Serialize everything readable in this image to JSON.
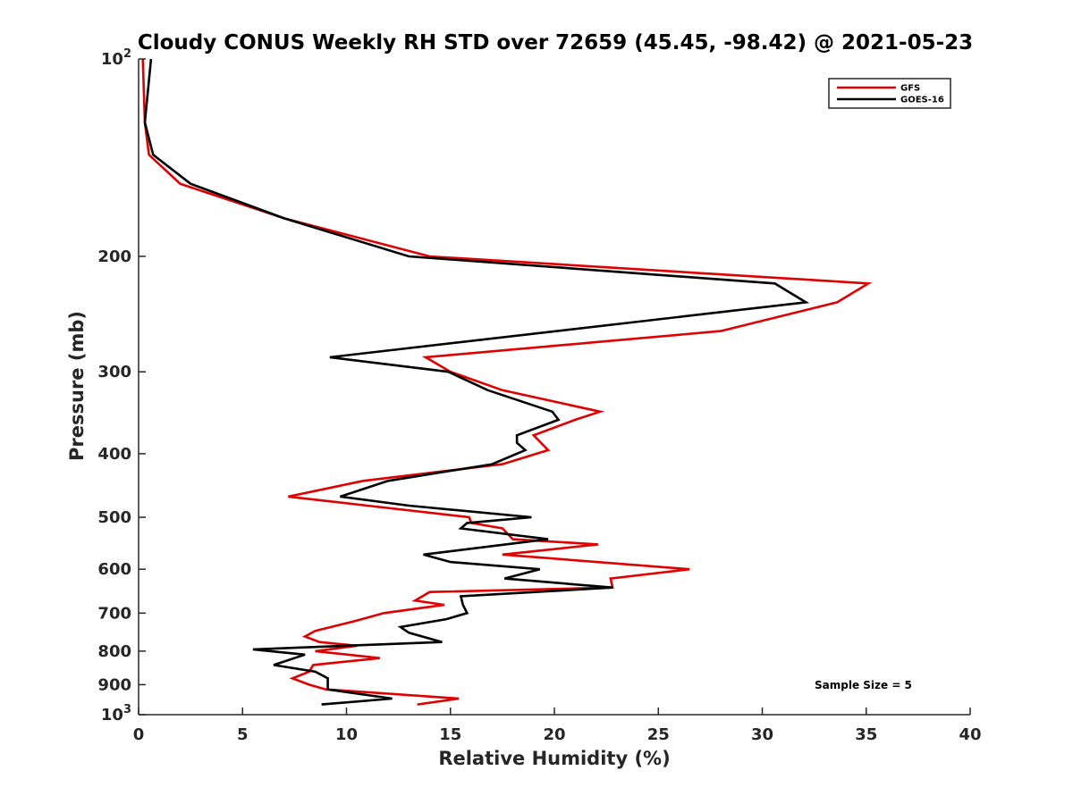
{
  "chart_data": {
    "type": "line",
    "orientation": "vertical-profile",
    "title": "Cloudy CONUS Weekly RH STD over 72659 (45.45, -98.42) @ 2021-05-23",
    "xlabel": "Relative Humidity (%)",
    "ylabel": "Pressure (mb)",
    "xlim": [
      0,
      40
    ],
    "ylim": [
      100,
      1000
    ],
    "y_scale": "log",
    "y_reversed": true,
    "grid": false,
    "legend_position": "top-right",
    "x_ticks": [
      "0",
      "5",
      "10",
      "15",
      "20",
      "25",
      "30",
      "35",
      "40"
    ],
    "y_ticks": [
      {
        "value": 100,
        "base": "10",
        "exp": "2"
      },
      {
        "value": 200,
        "label": "200"
      },
      {
        "value": 300,
        "label": "300"
      },
      {
        "value": 400,
        "label": "400"
      },
      {
        "value": 500,
        "label": "500"
      },
      {
        "value": 600,
        "label": "600"
      },
      {
        "value": 700,
        "label": "700"
      },
      {
        "value": 800,
        "label": "800"
      },
      {
        "value": 900,
        "label": "900"
      },
      {
        "value": 1000,
        "base": "10",
        "exp": "3"
      }
    ],
    "annotation": "Sample Size = 5",
    "series": [
      {
        "name": "GFS",
        "color": "#e00000",
        "points": [
          [
            0.2,
            100
          ],
          [
            0.3,
            125
          ],
          [
            0.5,
            140
          ],
          [
            2.0,
            155
          ],
          [
            7.0,
            175
          ],
          [
            14.0,
            200
          ],
          [
            35.1,
            220
          ],
          [
            33.6,
            235
          ],
          [
            28.0,
            260
          ],
          [
            13.8,
            285
          ],
          [
            15.0,
            300
          ],
          [
            17.5,
            320
          ],
          [
            22.2,
            345
          ],
          [
            21.0,
            355
          ],
          [
            19.0,
            375
          ],
          [
            19.7,
            395
          ],
          [
            17.5,
            415
          ],
          [
            10.8,
            440
          ],
          [
            7.2,
            465
          ],
          [
            11.0,
            480
          ],
          [
            15.9,
            500
          ],
          [
            16.0,
            510
          ],
          [
            17.5,
            520
          ],
          [
            18.0,
            540
          ],
          [
            22.1,
            550
          ],
          [
            17.5,
            570
          ],
          [
            26.5,
            600
          ],
          [
            22.7,
            620
          ],
          [
            22.8,
            640
          ],
          [
            14.0,
            650
          ],
          [
            13.3,
            670
          ],
          [
            14.7,
            680
          ],
          [
            11.8,
            700
          ],
          [
            10.4,
            720
          ],
          [
            8.5,
            745
          ],
          [
            8.0,
            760
          ],
          [
            8.7,
            775
          ],
          [
            10.5,
            785
          ],
          [
            8.5,
            800
          ],
          [
            11.6,
            820
          ],
          [
            8.4,
            840
          ],
          [
            8.2,
            860
          ],
          [
            7.4,
            880
          ],
          [
            8.2,
            900
          ],
          [
            9.0,
            915
          ],
          [
            15.4,
            945
          ],
          [
            13.4,
            965
          ]
        ]
      },
      {
        "name": "GOES-16",
        "color": "#000000",
        "points": [
          [
            0.6,
            100
          ],
          [
            0.3,
            125
          ],
          [
            0.7,
            140
          ],
          [
            2.5,
            155
          ],
          [
            7.0,
            175
          ],
          [
            13.0,
            200
          ],
          [
            30.6,
            220
          ],
          [
            32.1,
            235
          ],
          [
            9.2,
            285
          ],
          [
            14.9,
            300
          ],
          [
            16.8,
            320
          ],
          [
            19.9,
            345
          ],
          [
            20.2,
            355
          ],
          [
            18.2,
            375
          ],
          [
            18.2,
            385
          ],
          [
            18.6,
            395
          ],
          [
            17.0,
            415
          ],
          [
            12.0,
            440
          ],
          [
            9.7,
            465
          ],
          [
            13.0,
            480
          ],
          [
            18.9,
            500
          ],
          [
            15.8,
            510
          ],
          [
            15.5,
            520
          ],
          [
            19.7,
            540
          ],
          [
            13.7,
            570
          ],
          [
            15.0,
            585
          ],
          [
            19.3,
            600
          ],
          [
            17.6,
            620
          ],
          [
            22.8,
            640
          ],
          [
            15.5,
            660
          ],
          [
            15.6,
            680
          ],
          [
            15.8,
            700
          ],
          [
            14.8,
            715
          ],
          [
            12.6,
            735
          ],
          [
            13.0,
            750
          ],
          [
            14.6,
            775
          ],
          [
            5.5,
            795
          ],
          [
            8.0,
            810
          ],
          [
            6.5,
            840
          ],
          [
            8.5,
            860
          ],
          [
            9.1,
            880
          ],
          [
            9.1,
            915
          ],
          [
            12.2,
            945
          ],
          [
            8.8,
            965
          ]
        ]
      }
    ]
  }
}
